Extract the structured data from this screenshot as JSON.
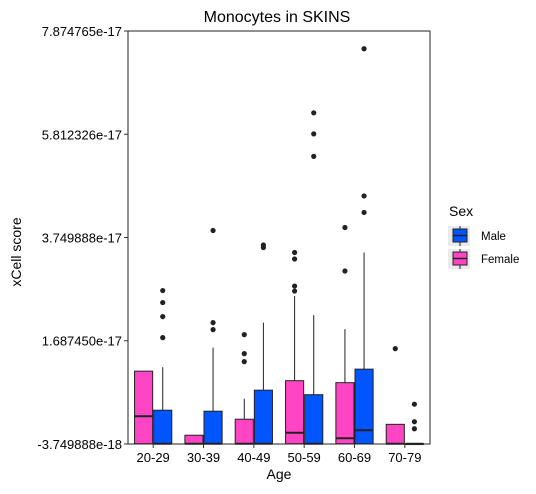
{
  "chart_data": {
    "type": "boxplot",
    "title": "Monocytes in SKINS",
    "xlabel": "Age",
    "ylabel": "xCell score",
    "ylim": [
      -3.749888e-18,
      7.874765e-17
    ],
    "yticks": [
      "7.874765e-17",
      "5.812326e-17",
      "3.749888e-17",
      "1.687450e-17",
      "-3.749888e-18"
    ],
    "ytick_values": [
      7.874765e-17,
      5.812326e-17,
      3.749888e-17,
      1.68745e-17,
      -3.749888e-18
    ],
    "categories": [
      "20-29",
      "30-39",
      "40-49",
      "50-59",
      "60-69",
      "70-79"
    ],
    "grid": false,
    "legend": {
      "title": "Sex",
      "placement": "right",
      "entries": [
        {
          "name": "Male",
          "color": "#0055FF"
        },
        {
          "name": "Female",
          "color": "#FF44C4"
        }
      ]
    },
    "series": [
      {
        "name": "Female",
        "color": "#FF44C4",
        "boxes": [
          {
            "category": "20-29",
            "whisker_low": -3.7e-18,
            "q1": -3.7e-18,
            "median": 1.8e-18,
            "q3": 1.08e-17,
            "whisker_high": 1.08e-17,
            "outliers": []
          },
          {
            "category": "30-39",
            "whisker_low": -3.7e-18,
            "q1": -3.7e-18,
            "median": -3.7e-18,
            "q3": -2e-18,
            "whisker_high": -2e-18,
            "outliers": []
          },
          {
            "category": "40-49",
            "whisker_low": -3.7e-18,
            "q1": -3.7e-18,
            "median": -3.7e-18,
            "q3": 1.2e-18,
            "whisker_high": 5.3e-18,
            "outliers": [
              1.27e-17,
              1.43e-17,
              1.81e-17
            ]
          },
          {
            "category": "50-59",
            "whisker_low": -3.7e-18,
            "q1": -3.7e-18,
            "median": -1.5e-18,
            "q3": 8.9e-18,
            "whisker_high": 2.58e-17,
            "outliers": [
              2.68e-17,
              2.78e-17,
              3.32e-17,
              3.45e-17
            ]
          },
          {
            "category": "60-69",
            "whisker_low": -3.7e-18,
            "q1": -3.7e-18,
            "median": -2.6e-18,
            "q3": 8.5e-18,
            "whisker_high": 1.92e-17,
            "outliers": [
              3.08e-17,
              3.95e-17
            ]
          },
          {
            "category": "70-79",
            "whisker_low": -3.7e-18,
            "q1": -3.7e-18,
            "median": -3.7e-18,
            "q3": 1.8e-19,
            "whisker_high": 1.8e-19,
            "outliers": [
              1.53e-17
            ]
          }
        ]
      },
      {
        "name": "Male",
        "color": "#0055FF",
        "boxes": [
          {
            "category": "20-29",
            "whisker_low": -3.7e-18,
            "q1": -3.7e-18,
            "median": -3.7e-18,
            "q3": 3e-18,
            "whisker_high": 1.16e-17,
            "outliers": [
              1.75e-17,
              2.17e-17,
              2.45e-17,
              2.69e-17
            ]
          },
          {
            "category": "30-39",
            "whisker_low": -3.7e-18,
            "q1": -3.7e-18,
            "median": -3.7e-18,
            "q3": 2.8e-18,
            "whisker_high": 1.55e-17,
            "outliers": [
              1.91e-17,
              2.05e-17,
              3.89e-17
            ]
          },
          {
            "category": "40-49",
            "whisker_low": -3.7e-18,
            "q1": -3.7e-18,
            "median": -3.7e-18,
            "q3": 7e-18,
            "whisker_high": 2.05e-17,
            "outliers": [
              3.55e-17,
              3.6e-17
            ]
          },
          {
            "category": "50-59",
            "whisker_low": -3.7e-18,
            "q1": -3.7e-18,
            "median": -3.7e-18,
            "q3": 6.1e-18,
            "whisker_high": 2.2e-17,
            "outliers": [
              5.37e-17,
              5.82e-17,
              6.24e-17
            ]
          },
          {
            "category": "60-69",
            "whisker_low": -3.7e-18,
            "q1": -3.7e-18,
            "median": -1e-18,
            "q3": 1.12e-17,
            "whisker_high": 3.45e-17,
            "outliers": [
              4.25e-17,
              4.58e-17,
              7.52e-17
            ]
          },
          {
            "category": "70-79",
            "whisker_low": -3.7e-18,
            "q1": -3.7e-18,
            "median": -3.7e-18,
            "q3": -3.7e-18,
            "whisker_high": -3.7e-18,
            "outliers": [
              -7e-19,
              7e-19,
              4.2e-18
            ]
          }
        ]
      }
    ]
  }
}
